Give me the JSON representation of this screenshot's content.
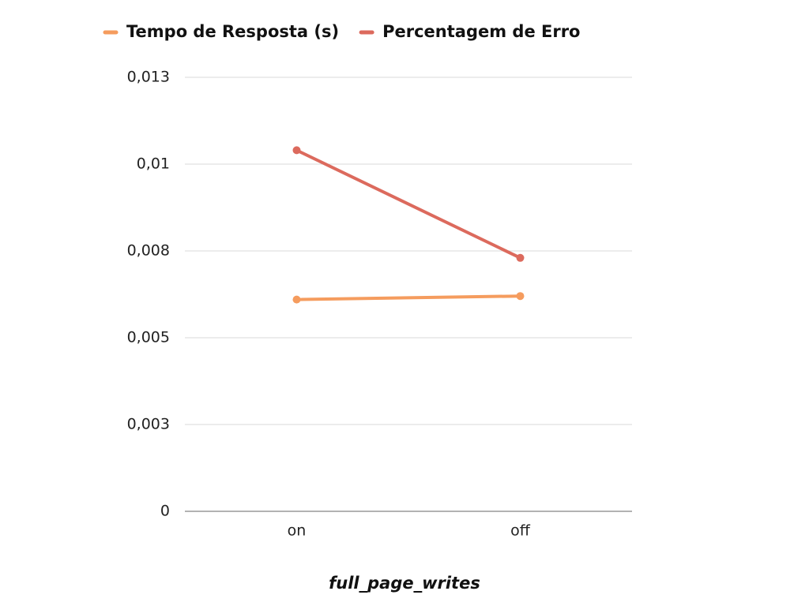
{
  "chart_data": {
    "type": "line",
    "x_label": "full_page_writes",
    "categories": [
      "on",
      "off"
    ],
    "series": [
      {
        "name": "Tempo de Resposta (s)",
        "color": "#f59c5e",
        "values": [
          0.0061,
          0.0062
        ]
      },
      {
        "name": "Percentagem de Erro",
        "color": "#dc6a5d",
        "values": [
          0.0104,
          0.0073
        ]
      }
    ],
    "ylim": [
      0,
      0.0125
    ],
    "yticks": [
      0,
      {
        "value": 0.0025,
        "label": "0,003"
      },
      {
        "value": 0.005,
        "label": "0,005"
      },
      {
        "value": 0.0075,
        "label": "0,008"
      },
      {
        "value": 0.01,
        "label": "0,01"
      },
      {
        "value": 0.0125,
        "label": "0,013"
      }
    ],
    "grid": true,
    "legend": "top"
  }
}
